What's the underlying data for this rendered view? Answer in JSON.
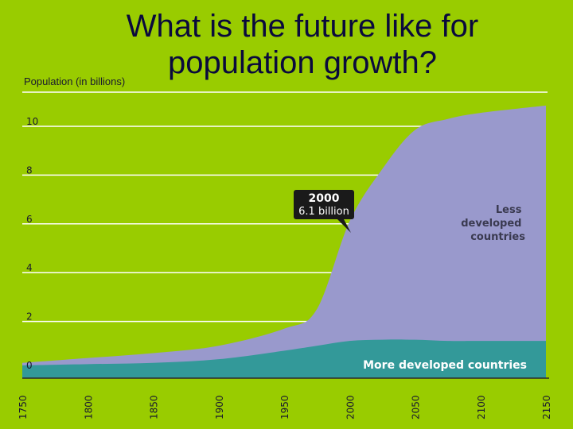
{
  "slide": {
    "title_line1": "What is the future like for",
    "title_line2": "population growth?"
  },
  "chart_data": {
    "type": "area",
    "ylabel": "Population (in billions)",
    "xlabel": "",
    "x": [
      1750,
      1800,
      1850,
      1900,
      1950,
      1975,
      2000,
      2025,
      2050,
      2075,
      2100,
      2150
    ],
    "xticks": [
      "1750",
      "1800",
      "1850",
      "1900",
      "1950",
      "2000",
      "2050",
      "2100",
      "2150"
    ],
    "yticks": [
      "0",
      "2",
      "4",
      "6",
      "8",
      "10"
    ],
    "ylim": [
      0,
      10
    ],
    "xlim": [
      1750,
      2150
    ],
    "grid": true,
    "stacked": true,
    "series": [
      {
        "name": "More developed countries",
        "color": "#339999",
        "values": [
          0.2,
          0.25,
          0.3,
          0.45,
          0.8,
          1.0,
          1.2,
          1.25,
          1.25,
          1.2,
          1.2,
          1.2
        ]
      },
      {
        "name": "Less developed countries",
        "color": "#9999cc",
        "values": [
          0.1,
          0.25,
          0.4,
          0.55,
          0.9,
          1.5,
          4.9,
          7.0,
          8.6,
          9.1,
          9.35,
          9.65
        ]
      }
    ],
    "annotation": {
      "year_label": "2000",
      "value_label": "6.1 billion",
      "x": 2000,
      "y": 6.1
    }
  }
}
